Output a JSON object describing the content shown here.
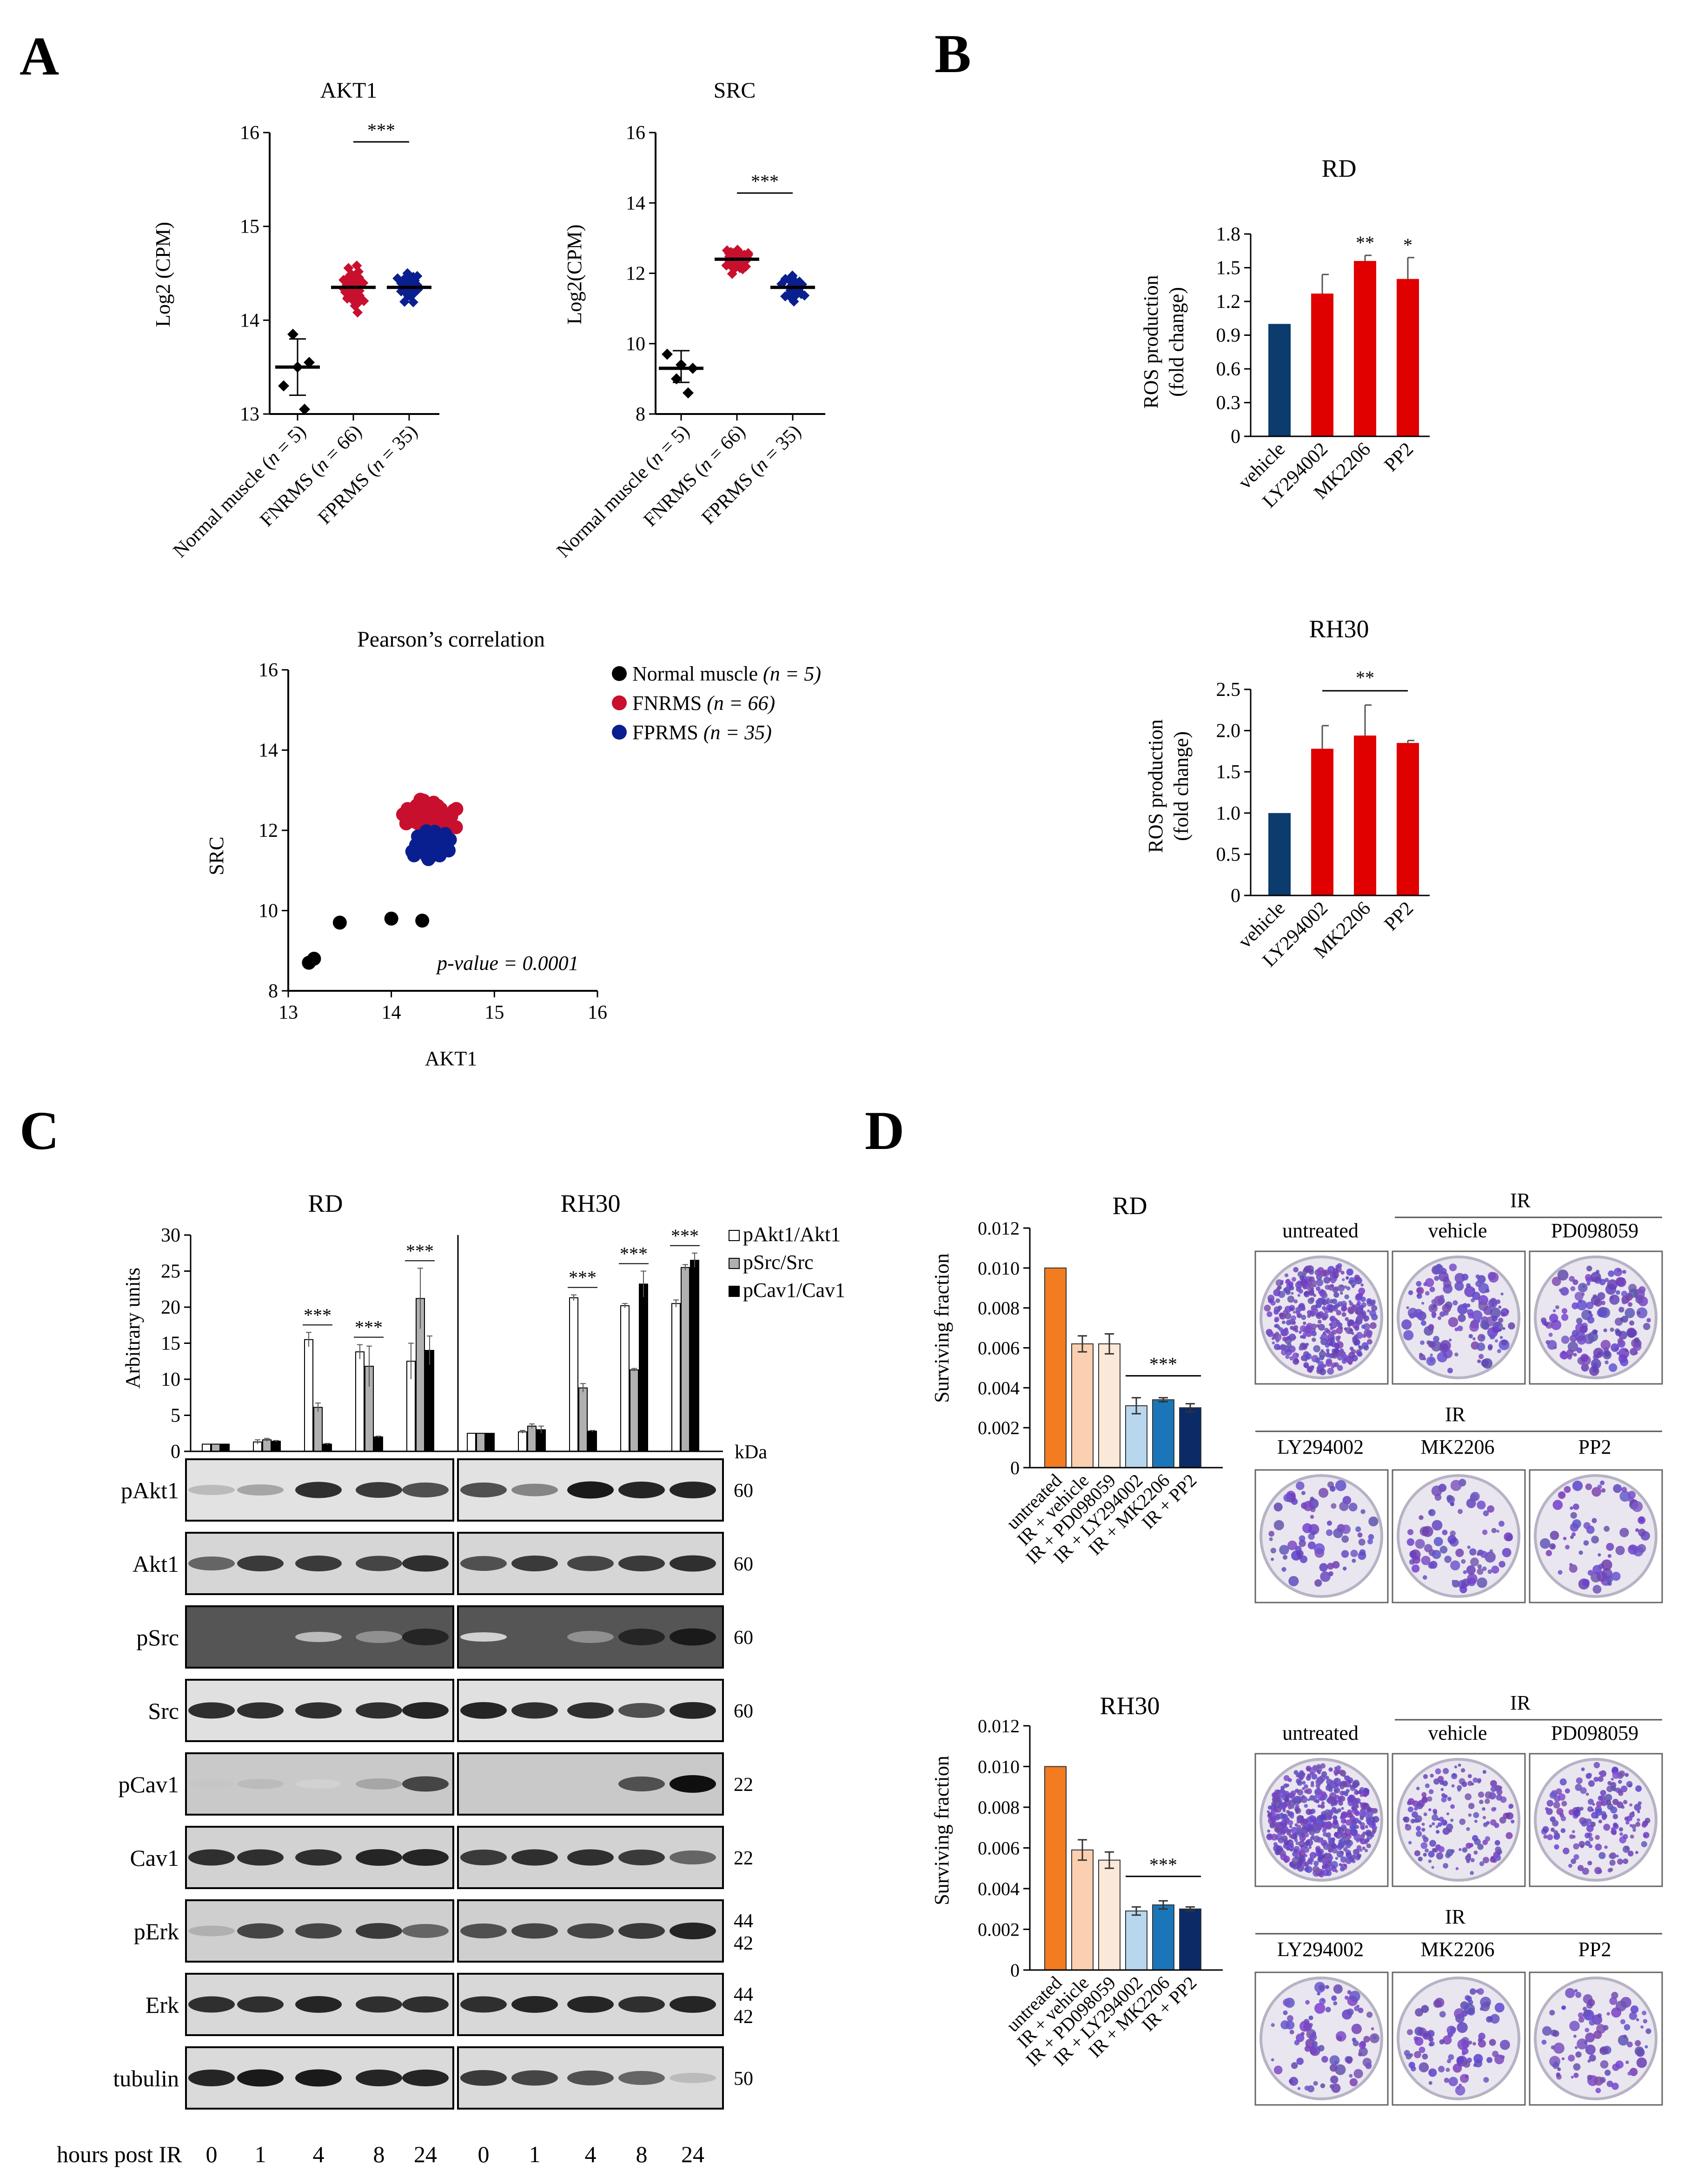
{
  "panels": {
    "a": "A",
    "b": "B",
    "c": "C",
    "d": "D"
  },
  "colors": {
    "normal": "#000000",
    "fnrms": "#c8102e",
    "fprms": "#0a1f8f",
    "vehicle_bar": "#0c3b6e",
    "treat_bar": "#e00000",
    "d_untreated": "#f37b20",
    "d_vehicle": "#fbd0b0",
    "d_pd": "#fce8d8",
    "d_ly": "#b8d6ee",
    "d_mk": "#1a76b8",
    "d_pp2": "#0b2a66"
  },
  "chart_data": [
    {
      "id": "akt1_dot",
      "type": "scatter",
      "title": "AKT1",
      "ylabel": "Log2 (CPM)",
      "ylim": [
        13,
        16
      ],
      "yticks": [
        "13",
        "14",
        "15",
        "16"
      ],
      "categories": [
        "Normal muscle (n = 5)",
        "FNRMS (n = 66)",
        "FPRMS (n = 35)"
      ],
      "medians": [
        13.5,
        14.35,
        14.35
      ],
      "normal_sd": [
        13.2,
        13.8
      ],
      "sig": "***",
      "normal_points": [
        13.3,
        13.5,
        13.55,
        13.85,
        13.05
      ]
    },
    {
      "id": "src_dot",
      "type": "scatter",
      "title": "SRC",
      "ylabel": "Log2(CPM)",
      "ylim": [
        8,
        16
      ],
      "yticks": [
        "8",
        "10",
        "12",
        "14",
        "16"
      ],
      "categories": [
        "Normal muscle (n = 5)",
        "FNRMS (n = 66)",
        "FPRMS (n = 35)"
      ],
      "medians": [
        9.3,
        12.4,
        11.6
      ],
      "normal_sd": [
        8.9,
        9.8
      ],
      "sig": "***",
      "normal_points": [
        9.7,
        9.4,
        9.3,
        9.0,
        8.6
      ]
    },
    {
      "id": "pearson",
      "type": "scatter",
      "title": "Pearson’s correlation",
      "xlabel": "AKT1",
      "ylabel": "SRC",
      "xlim": [
        13,
        16
      ],
      "ylim": [
        8,
        16
      ],
      "xticks": [
        "13",
        "14",
        "15",
        "16"
      ],
      "yticks": [
        "8",
        "10",
        "12",
        "14",
        "16"
      ],
      "legend": [
        {
          "label": "Normal muscle",
          "n": "(n = 5)"
        },
        {
          "label": "FNRMS",
          "n": "(n = 66)"
        },
        {
          "label": "FPRMS",
          "n": "(n = 35)"
        }
      ],
      "annotation": "p-value = 0.0001",
      "normal_xy": [
        [
          13.2,
          8.7
        ],
        [
          13.25,
          8.8
        ],
        [
          13.5,
          9.7
        ],
        [
          14.0,
          9.8
        ],
        [
          14.3,
          9.75
        ]
      ]
    },
    {
      "id": "ros_rd",
      "type": "bar",
      "title": "RD",
      "ylabel_lines": [
        "ROS production",
        "(fold change)"
      ],
      "categories": [
        "vehicle",
        "LY294002",
        "MK2206",
        "PP2"
      ],
      "values": [
        1.0,
        1.27,
        1.56,
        1.4
      ],
      "errors": [
        0,
        0.17,
        0.05,
        0.19
      ],
      "stars": [
        "",
        "",
        "**",
        "*"
      ],
      "ylim": [
        0,
        1.8
      ],
      "yticks": [
        "0",
        "0.3",
        "0.6",
        "0.9",
        "1.2",
        "1.5",
        "1.8"
      ]
    },
    {
      "id": "ros_rh30",
      "type": "bar",
      "title": "RH30",
      "ylabel_lines": [
        "ROS production",
        "(fold change)"
      ],
      "categories": [
        "vehicle",
        "LY294002",
        "MK2206",
        "PP2"
      ],
      "values": [
        1.0,
        1.78,
        1.94,
        1.85
      ],
      "errors": [
        0,
        0.28,
        0.37,
        0.03
      ],
      "group_sig": "**",
      "ylim": [
        0,
        2.5
      ],
      "yticks": [
        "0",
        "0.5",
        "1.0",
        "1.5",
        "2.0",
        "2.5"
      ]
    },
    {
      "id": "western_bar",
      "type": "bar",
      "ylabel": "Arbitrary units",
      "ylim": [
        0,
        30
      ],
      "yticks": [
        "0",
        "5",
        "10",
        "15",
        "20",
        "25",
        "30"
      ],
      "groups": [
        "RD",
        "RH30"
      ],
      "categories": [
        "0",
        "1",
        "4",
        "8",
        "24"
      ],
      "series": [
        {
          "name": "pAkt1/Akt1",
          "rd": [
            1,
            1.3,
            15.5,
            13.8,
            12.5
          ],
          "rd_err": [
            0,
            0.3,
            1.0,
            1.0,
            2.5
          ],
          "rh30": [
            2.5,
            2.7,
            21.3,
            20.2,
            20.5
          ],
          "rh30_err": [
            0,
            0.2,
            0.4,
            0.3,
            0.5
          ]
        },
        {
          "name": "pSrc/Src",
          "rd": [
            1,
            1.6,
            6.1,
            11.8,
            21.2
          ],
          "rd_err": [
            0,
            0.2,
            0.6,
            2.8,
            4.2
          ],
          "rh30": [
            2.5,
            3.5,
            8.8,
            11.3,
            25.5
          ],
          "rh30_err": [
            0,
            0.3,
            0.6,
            0.2,
            0.4
          ]
        },
        {
          "name": "pCav1/Cav1",
          "rd": [
            1,
            1.4,
            1.0,
            2.0,
            14.0
          ],
          "rd_err": [
            0,
            0.1,
            0.1,
            0.1,
            2.0
          ],
          "rh30": [
            2.5,
            3.0,
            2.8,
            23.2,
            26.5
          ],
          "rh30_err": [
            0,
            0.5,
            0.1,
            1.8,
            1.0
          ]
        }
      ],
      "sig_marks": [
        "***",
        "***",
        "***",
        "***",
        "***",
        "***"
      ],
      "kda_label": "kDa"
    },
    {
      "id": "survival_rd",
      "type": "bar",
      "title": "RD",
      "ylabel": "Surviving fraction",
      "categories": [
        "untreated",
        "IR + vehicle",
        "IR + PD098059",
        "IR + LY294002",
        "IR + MK2206",
        "IR + PP2"
      ],
      "values": [
        0.01,
        0.0062,
        0.0062,
        0.0031,
        0.0034,
        0.003
      ],
      "errors": [
        0,
        0.0004,
        0.0005,
        0.0004,
        0.0001,
        0.0002
      ],
      "group_sig": "***",
      "ylim": [
        0,
        0.012
      ],
      "yticks": [
        "0",
        "0.002",
        "0.004",
        "0.006",
        "0.008",
        "0.010",
        "0.012"
      ]
    },
    {
      "id": "survival_rh30",
      "type": "bar",
      "title": "RH30",
      "ylabel": "Surviving fraction",
      "categories": [
        "untreated",
        "IR + vehicle",
        "IR + PD098059",
        "IR + LY294002",
        "IR + MK2206",
        "IR + PP2"
      ],
      "values": [
        0.01,
        0.0059,
        0.0054,
        0.0029,
        0.0032,
        0.003
      ],
      "errors": [
        0,
        0.0005,
        0.0004,
        0.0002,
        0.0002,
        0.0001
      ],
      "group_sig": "***",
      "ylim": [
        0,
        0.012
      ],
      "yticks": [
        "0",
        "0.002",
        "0.004",
        "0.006",
        "0.008",
        "0.010",
        "0.012"
      ]
    }
  ],
  "blot": {
    "groups": [
      "RD",
      "RH30"
    ],
    "rows": [
      {
        "label": "pAkt1",
        "kda": "60",
        "kda2": ""
      },
      {
        "label": "Akt1",
        "kda": "60",
        "kda2": ""
      },
      {
        "label": "pSrc",
        "kda": "60",
        "kda2": ""
      },
      {
        "label": "Src",
        "kda": "60",
        "kda2": ""
      },
      {
        "label": "pCav1",
        "kda": "22",
        "kda2": ""
      },
      {
        "label": "Cav1",
        "kda": "22",
        "kda2": ""
      },
      {
        "label": "pErk",
        "kda": "44",
        "kda2": "42"
      },
      {
        "label": "Erk",
        "kda": "44",
        "kda2": "42"
      },
      {
        "label": "tubulin",
        "kda": "50",
        "kda2": ""
      }
    ],
    "hours_label": "hours post IR",
    "hours": [
      "0",
      "1",
      "4",
      "8",
      "24"
    ]
  },
  "plates": {
    "ir_label": "IR",
    "top_labels": [
      "untreated",
      "vehicle",
      "PD098059"
    ],
    "bottom_labels": [
      "LY294002",
      "MK2206",
      "PP2"
    ]
  }
}
